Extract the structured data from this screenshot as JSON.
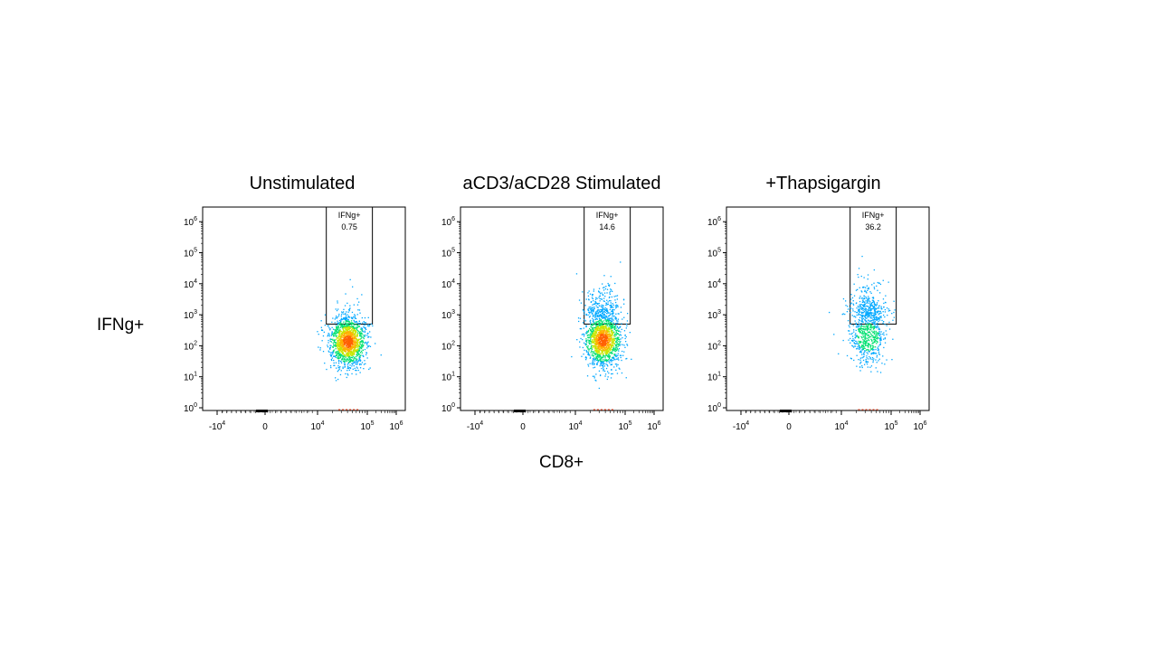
{
  "figure": {
    "y_axis_label": "IFNg+",
    "x_axis_label": "CD8+"
  },
  "chart_data": [
    {
      "type": "scatter",
      "title": "Unstimulated",
      "xlabel": "CD8+",
      "ylabel": "IFNg+",
      "x_scale": "biexponential",
      "y_scale": "log",
      "x_ticks": [
        "-10^4",
        "0",
        "10^4",
        "10^5",
        "10^6"
      ],
      "y_ticks": [
        "10^0",
        "10^1",
        "10^2",
        "10^3",
        "10^4",
        "10^5",
        "10^6"
      ],
      "gate": {
        "name": "IFNg+",
        "value": "0.75",
        "x_range": [
          15000,
          150000
        ],
        "y_range": [
          500,
          1000000
        ]
      },
      "population": {
        "count": 1500,
        "x_center": 40000,
        "y_center_log10": 2.15,
        "y_spread_log10": 0.42,
        "gated_fraction": 0.0075,
        "density_colormap": true
      }
    },
    {
      "type": "scatter",
      "title": "aCD3/aCD28 Stimulated",
      "xlabel": "CD8+",
      "ylabel": "IFNg+",
      "x_scale": "biexponential",
      "y_scale": "log",
      "x_ticks": [
        "-10^4",
        "0",
        "10^4",
        "10^5",
        "10^6"
      ],
      "y_ticks": [
        "10^0",
        "10^1",
        "10^2",
        "10^3",
        "10^4",
        "10^5",
        "10^6"
      ],
      "gate": {
        "name": "IFNg+",
        "value": "14.6",
        "x_range": [
          15000,
          150000
        ],
        "y_range": [
          500,
          1000000
        ]
      },
      "population": {
        "count": 1700,
        "x_center": 35000,
        "y_center_log10": 2.2,
        "y_spread_log10": 0.45,
        "gated_fraction": 0.146,
        "density_colormap": true
      }
    },
    {
      "type": "scatter",
      "title": "+Thapsigargin",
      "xlabel": "CD8+",
      "ylabel": "IFNg+",
      "x_scale": "biexponential",
      "y_scale": "log",
      "x_ticks": [
        "-10^4",
        "0",
        "10^4",
        "10^5",
        "10^6"
      ],
      "y_ticks": [
        "10^0",
        "10^1",
        "10^2",
        "10^3",
        "10^4",
        "10^5",
        "10^6"
      ],
      "gate": {
        "name": "IFNg+",
        "value": "36.2",
        "x_range": [
          15000,
          150000
        ],
        "y_range": [
          500,
          1000000
        ]
      },
      "population": {
        "count": 900,
        "x_center": 33000,
        "y_center_log10": 2.3,
        "y_spread_log10": 0.45,
        "gated_fraction": 0.362,
        "density_colormap": true
      }
    }
  ]
}
